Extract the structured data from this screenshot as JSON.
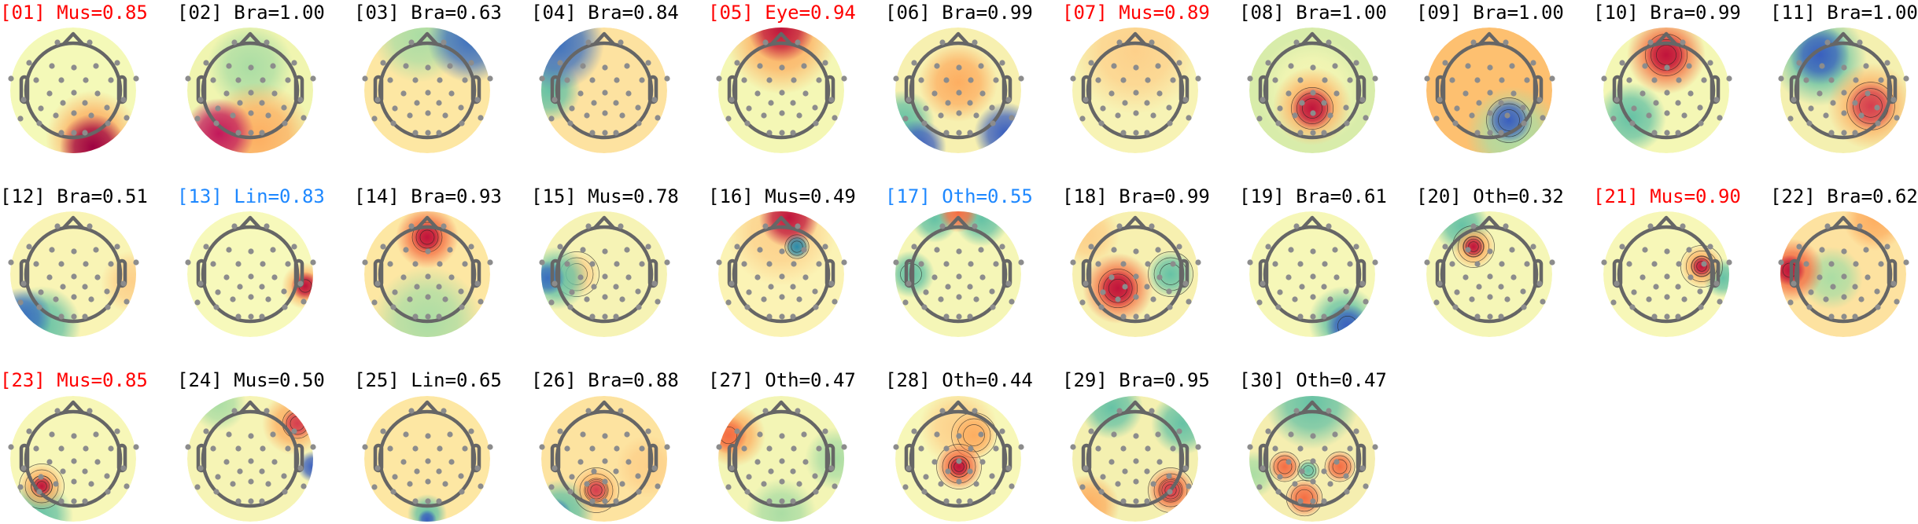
{
  "chart_data": {
    "type": "heatmap",
    "layout": "grid of scalp topographic maps, 11 per row",
    "colormap": [
      "#3a5fbf",
      "#66c2a5",
      "#abdda4",
      "#f7f7b8",
      "#fdae61",
      "#f46d43",
      "#c0143c"
    ],
    "components": [
      {
        "title": "[01] Mus=0.85",
        "index": 1,
        "label": "Mus",
        "probability": 0.85,
        "color": "#ff0000"
      },
      {
        "title": "[02] Bra=1.00",
        "index": 2,
        "label": "Bra",
        "probability": 1.0,
        "color": "#000000"
      },
      {
        "title": "[03] Bra=0.63",
        "index": 3,
        "label": "Bra",
        "probability": 0.63,
        "color": "#000000"
      },
      {
        "title": "[04] Bra=0.84",
        "index": 4,
        "label": "Bra",
        "probability": 0.84,
        "color": "#000000"
      },
      {
        "title": "[05] Eye=0.94",
        "index": 5,
        "label": "Eye",
        "probability": 0.94,
        "color": "#ff0000"
      },
      {
        "title": "[06] Bra=0.99",
        "index": 6,
        "label": "Bra",
        "probability": 0.99,
        "color": "#000000"
      },
      {
        "title": "[07] Mus=0.89",
        "index": 7,
        "label": "Mus",
        "probability": 0.89,
        "color": "#ff0000"
      },
      {
        "title": "[08] Bra=1.00",
        "index": 8,
        "label": "Bra",
        "probability": 1.0,
        "color": "#000000"
      },
      {
        "title": "[09] Bra=1.00",
        "index": 9,
        "label": "Bra",
        "probability": 1.0,
        "color": "#000000"
      },
      {
        "title": "[10] Bra=0.99",
        "index": 10,
        "label": "Bra",
        "probability": 0.99,
        "color": "#000000"
      },
      {
        "title": "[11] Bra=1.00",
        "index": 11,
        "label": "Bra",
        "probability": 1.0,
        "color": "#000000"
      },
      {
        "title": "[12] Bra=0.51",
        "index": 12,
        "label": "Bra",
        "probability": 0.51,
        "color": "#000000"
      },
      {
        "title": "[13] Lin=0.83",
        "index": 13,
        "label": "Lin",
        "probability": 0.83,
        "color": "#1e88ff"
      },
      {
        "title": "[14] Bra=0.93",
        "index": 14,
        "label": "Bra",
        "probability": 0.93,
        "color": "#000000"
      },
      {
        "title": "[15] Mus=0.78",
        "index": 15,
        "label": "Mus",
        "probability": 0.78,
        "color": "#000000"
      },
      {
        "title": "[16] Mus=0.49",
        "index": 16,
        "label": "Mus",
        "probability": 0.49,
        "color": "#000000"
      },
      {
        "title": "[17] Oth=0.55",
        "index": 17,
        "label": "Oth",
        "probability": 0.55,
        "color": "#1e88ff"
      },
      {
        "title": "[18] Bra=0.99",
        "index": 18,
        "label": "Bra",
        "probability": 0.99,
        "color": "#000000"
      },
      {
        "title": "[19] Bra=0.61",
        "index": 19,
        "label": "Bra",
        "probability": 0.61,
        "color": "#000000"
      },
      {
        "title": "[20] Oth=0.32",
        "index": 20,
        "label": "Oth",
        "probability": 0.32,
        "color": "#000000"
      },
      {
        "title": "[21] Mus=0.90",
        "index": 21,
        "label": "Mus",
        "probability": 0.9,
        "color": "#ff0000"
      },
      {
        "title": "[22] Bra=0.62",
        "index": 22,
        "label": "Bra",
        "probability": 0.62,
        "color": "#000000"
      },
      {
        "title": "[23] Mus=0.85",
        "index": 23,
        "label": "Mus",
        "probability": 0.85,
        "color": "#ff0000"
      },
      {
        "title": "[24] Mus=0.50",
        "index": 24,
        "label": "Mus",
        "probability": 0.5,
        "color": "#000000"
      },
      {
        "title": "[25] Lin=0.65",
        "index": 25,
        "label": "Lin",
        "probability": 0.65,
        "color": "#000000"
      },
      {
        "title": "[26] Bra=0.88",
        "index": 26,
        "label": "Bra",
        "probability": 0.88,
        "color": "#000000"
      },
      {
        "title": "[27] Oth=0.47",
        "index": 27,
        "label": "Oth",
        "probability": 0.47,
        "color": "#000000"
      },
      {
        "title": "[28] Oth=0.44",
        "index": 28,
        "label": "Oth",
        "probability": 0.44,
        "color": "#000000"
      },
      {
        "title": "[29] Bra=0.95",
        "index": 29,
        "label": "Bra",
        "probability": 0.95,
        "color": "#000000"
      },
      {
        "title": "[30] Oth=0.47",
        "index": 30,
        "label": "Oth",
        "probability": 0.47,
        "color": "#000000"
      }
    ]
  }
}
